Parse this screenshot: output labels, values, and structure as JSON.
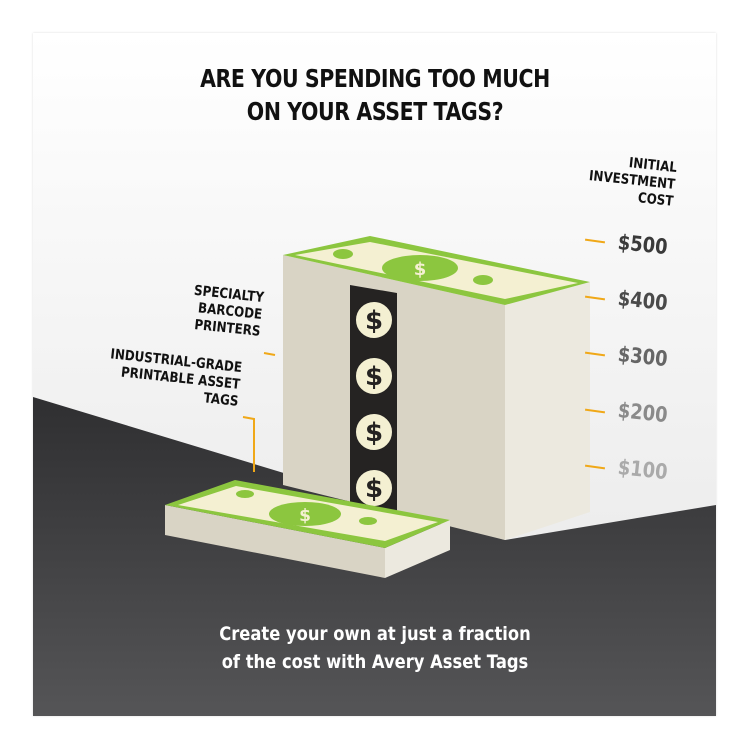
{
  "title": {
    "line1": "ARE YOU SPENDING TOO MUCH",
    "line2": "ON YOUR ASSET TAGS?"
  },
  "axis": {
    "label_lines": [
      "INITIAL",
      "INVESTMENT",
      "COST"
    ],
    "prices": [
      "$500",
      "$400",
      "$300",
      "$200",
      "$100"
    ]
  },
  "labels": {
    "printers": [
      "SPECIALTY",
      "BARCODE",
      "PRINTERS"
    ],
    "tags": [
      "INDUSTRIAL-GRADE",
      "PRINTABLE ASSET TAGS"
    ]
  },
  "footer": {
    "line1": "Create your own at just a fraction",
    "line2": "of the cost with Avery Asset Tags"
  },
  "colors": {
    "accent": "#f0a818",
    "money_green": "#8cc63f",
    "floor": "#3a3a3c",
    "stack": "#d8d3c4"
  }
}
